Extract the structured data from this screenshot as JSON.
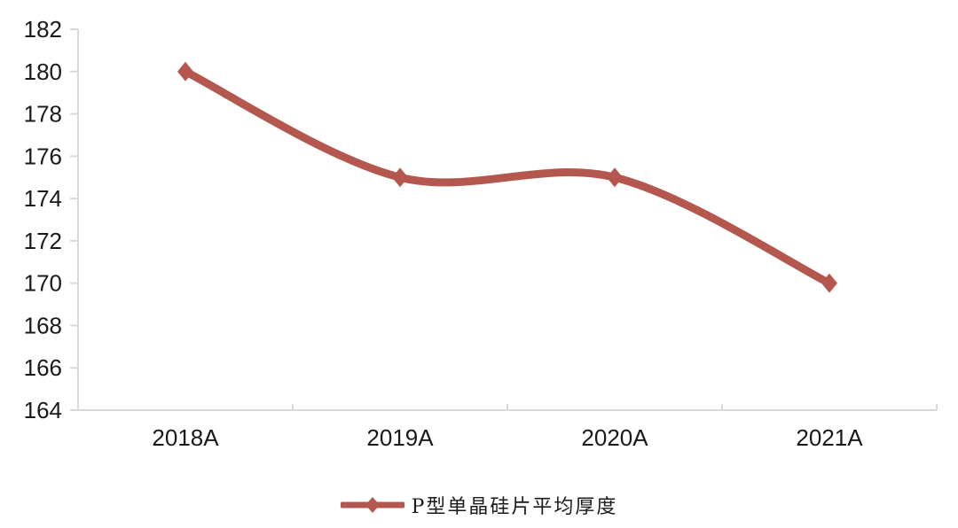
{
  "page": {
    "background_color": "#FFFFFF"
  },
  "chart_data": {
    "type": "line",
    "title": "",
    "xlabel": "",
    "ylabel": "",
    "categories": [
      "2018A",
      "2019A",
      "2020A",
      "2021A"
    ],
    "series": [
      {
        "name": "P型单晶硅片平均厚度",
        "values": [
          180,
          175,
          175,
          170
        ],
        "color": "#B4584F",
        "marker": "diamond",
        "smooth": true,
        "line_width": 9
      }
    ],
    "ylim": [
      164,
      182
    ],
    "y_ticks": [
      164,
      166,
      168,
      170,
      172,
      174,
      176,
      178,
      180,
      182
    ],
    "grid": false,
    "legend_position": "bottom",
    "axis_color": "#D9D9D9",
    "tick_label_color": "#1A1A1A"
  },
  "legend": {
    "label": "P型单晶硅片平均厚度"
  }
}
